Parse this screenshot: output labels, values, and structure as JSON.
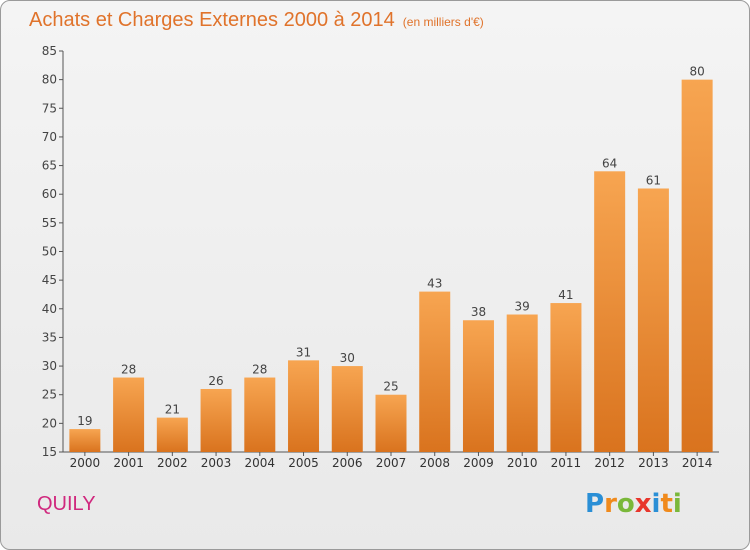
{
  "title": "Achats et Charges Externes 2000 à 2014",
  "unit": "(en milliers d'€)",
  "commune": "QUILY",
  "logo": {
    "letters": [
      "P",
      "r",
      "o",
      "x",
      "i",
      "t",
      "i"
    ],
    "colors": [
      "#2a8fd6",
      "#f08a1c",
      "#7ab83a",
      "#e8362c",
      "#2a8fd6",
      "#f08a1c",
      "#7ab83a"
    ]
  },
  "colors": {
    "bar_top": "#f7a551",
    "bar_bottom": "#d9731e",
    "text": "#e0732b",
    "axis": "#555555"
  },
  "chart_data": {
    "type": "bar",
    "categories": [
      "2000",
      "2001",
      "2002",
      "2003",
      "2004",
      "2005",
      "2006",
      "2007",
      "2008",
      "2009",
      "2010",
      "2011",
      "2012",
      "2013",
      "2014"
    ],
    "values": [
      19,
      28,
      21,
      26,
      28,
      31,
      30,
      25,
      43,
      38,
      39,
      41,
      64,
      61,
      80
    ],
    "ylim": [
      15,
      85
    ],
    "yticks": [
      15,
      20,
      25,
      30,
      35,
      40,
      45,
      50,
      55,
      60,
      65,
      70,
      75,
      80,
      85
    ],
    "grid": false,
    "legend": "none"
  }
}
